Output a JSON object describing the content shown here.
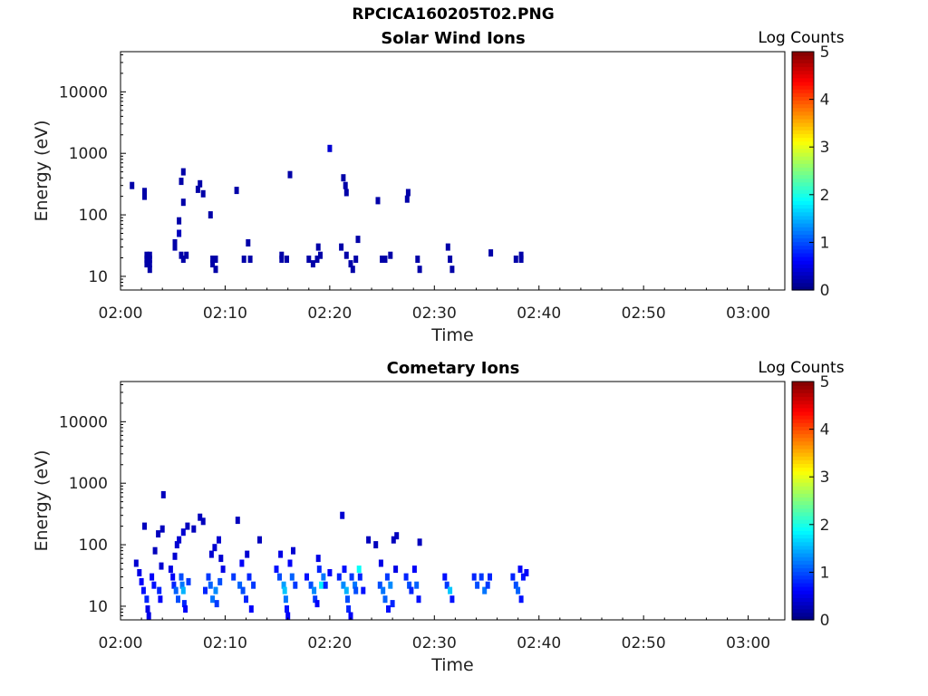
{
  "figure": {
    "title": "RPCICA160205T02.PNG"
  },
  "chart_data": [
    {
      "type": "heatmap",
      "title": "Solar Wind Ions",
      "xlabel": "Time",
      "ylabel": "Energy (eV)",
      "x_ticks": [
        "02:00",
        "02:10",
        "02:20",
        "02:30",
        "02:40",
        "02:50",
        "03:00"
      ],
      "xlim_minutes": [
        0,
        63.5
      ],
      "y_scale": "log",
      "y_ticks": [
        "10",
        "100",
        "1000",
        "10000"
      ],
      "ylim": [
        6,
        45000
      ],
      "colorbar": {
        "label": "Log Counts",
        "ticks": [
          "0",
          "1",
          "2",
          "3",
          "4",
          "5"
        ],
        "range": [
          0,
          5
        ],
        "colormap": "jet"
      },
      "pixels": [
        {
          "t": 1.1,
          "e": 300,
          "v": 0.2
        },
        {
          "t": 2.3,
          "e": 200,
          "v": 0.2
        },
        {
          "t": 2.3,
          "e": 240,
          "v": 0.2
        },
        {
          "t": 2.5,
          "e": 16,
          "v": 0.2
        },
        {
          "t": 2.5,
          "e": 19,
          "v": 0.2
        },
        {
          "t": 2.5,
          "e": 22,
          "v": 0.2
        },
        {
          "t": 2.8,
          "e": 16,
          "v": 0.2
        },
        {
          "t": 2.8,
          "e": 19,
          "v": 0.2
        },
        {
          "t": 2.8,
          "e": 22,
          "v": 0.2
        },
        {
          "t": 2.8,
          "e": 13,
          "v": 0.2
        },
        {
          "t": 5.2,
          "e": 30,
          "v": 0.2
        },
        {
          "t": 5.2,
          "e": 35,
          "v": 0.2
        },
        {
          "t": 5.6,
          "e": 50,
          "v": 0.3
        },
        {
          "t": 5.6,
          "e": 80,
          "v": 0.2
        },
        {
          "t": 5.8,
          "e": 22,
          "v": 0.2
        },
        {
          "t": 5.8,
          "e": 350,
          "v": 0.2
        },
        {
          "t": 6.0,
          "e": 19,
          "v": 0.2
        },
        {
          "t": 6.0,
          "e": 160,
          "v": 0.2
        },
        {
          "t": 6.0,
          "e": 500,
          "v": 0.2
        },
        {
          "t": 6.3,
          "e": 22,
          "v": 0.2
        },
        {
          "t": 7.4,
          "e": 260,
          "v": 0.2
        },
        {
          "t": 7.6,
          "e": 320,
          "v": 0.2
        },
        {
          "t": 7.9,
          "e": 220,
          "v": 0.2
        },
        {
          "t": 8.6,
          "e": 100,
          "v": 0.2
        },
        {
          "t": 8.8,
          "e": 19,
          "v": 0.2
        },
        {
          "t": 8.8,
          "e": 16,
          "v": 0.2
        },
        {
          "t": 9.1,
          "e": 19,
          "v": 0.2
        },
        {
          "t": 9.1,
          "e": 13,
          "v": 0.2
        },
        {
          "t": 11.1,
          "e": 250,
          "v": 0.2
        },
        {
          "t": 11.8,
          "e": 19,
          "v": 0.2
        },
        {
          "t": 12.2,
          "e": 35,
          "v": 0.2
        },
        {
          "t": 12.4,
          "e": 19,
          "v": 0.2
        },
        {
          "t": 15.4,
          "e": 19,
          "v": 0.2
        },
        {
          "t": 15.4,
          "e": 22,
          "v": 0.2
        },
        {
          "t": 15.9,
          "e": 19,
          "v": 0.2
        },
        {
          "t": 16.2,
          "e": 450,
          "v": 0.2
        },
        {
          "t": 18.0,
          "e": 19,
          "v": 0.2
        },
        {
          "t": 18.4,
          "e": 16,
          "v": 0.2
        },
        {
          "t": 18.8,
          "e": 19,
          "v": 0.2
        },
        {
          "t": 18.9,
          "e": 30,
          "v": 0.2
        },
        {
          "t": 19.1,
          "e": 22,
          "v": 0.2
        },
        {
          "t": 20.0,
          "e": 1200,
          "v": 0.4
        },
        {
          "t": 21.1,
          "e": 30,
          "v": 0.2
        },
        {
          "t": 21.3,
          "e": 400,
          "v": 0.2
        },
        {
          "t": 21.5,
          "e": 300,
          "v": 0.2
        },
        {
          "t": 21.6,
          "e": 230,
          "v": 0.2
        },
        {
          "t": 21.6,
          "e": 22,
          "v": 0.2
        },
        {
          "t": 22.0,
          "e": 16,
          "v": 0.2
        },
        {
          "t": 22.2,
          "e": 13,
          "v": 0.2
        },
        {
          "t": 22.7,
          "e": 40,
          "v": 0.2
        },
        {
          "t": 22.5,
          "e": 19,
          "v": 0.2
        },
        {
          "t": 24.6,
          "e": 170,
          "v": 0.2
        },
        {
          "t": 25.0,
          "e": 19,
          "v": 0.2
        },
        {
          "t": 25.3,
          "e": 19,
          "v": 0.2
        },
        {
          "t": 25.8,
          "e": 22,
          "v": 0.2
        },
        {
          "t": 27.5,
          "e": 230,
          "v": 0.2
        },
        {
          "t": 27.4,
          "e": 180,
          "v": 0.2
        },
        {
          "t": 28.4,
          "e": 19,
          "v": 0.2
        },
        {
          "t": 28.6,
          "e": 13,
          "v": 0.2
        },
        {
          "t": 31.3,
          "e": 30,
          "v": 0.2
        },
        {
          "t": 31.5,
          "e": 19,
          "v": 0.2
        },
        {
          "t": 31.7,
          "e": 13,
          "v": 0.2
        },
        {
          "t": 35.4,
          "e": 24,
          "v": 0.2
        },
        {
          "t": 37.8,
          "e": 19,
          "v": 0.2
        },
        {
          "t": 38.3,
          "e": 19,
          "v": 0.2
        },
        {
          "t": 38.3,
          "e": 22,
          "v": 0.2
        }
      ]
    },
    {
      "type": "heatmap",
      "title": "Cometary Ions",
      "xlabel": "Time",
      "ylabel": "Energy (eV)",
      "x_ticks": [
        "02:00",
        "02:10",
        "02:20",
        "02:30",
        "02:40",
        "02:50",
        "03:00"
      ],
      "xlim_minutes": [
        0,
        63.5
      ],
      "y_scale": "log",
      "y_ticks": [
        "10",
        "100",
        "1000",
        "10000"
      ],
      "ylim": [
        6,
        45000
      ],
      "colorbar": {
        "label": "Log Counts",
        "ticks": [
          "0",
          "1",
          "2",
          "3",
          "4",
          "5"
        ],
        "range": [
          0,
          5
        ],
        "colormap": "jet"
      },
      "pixels": [
        {
          "t": 1.5,
          "e": 50,
          "v": 0.4
        },
        {
          "t": 1.8,
          "e": 35,
          "v": 0.5
        },
        {
          "t": 2.0,
          "e": 25,
          "v": 0.6
        },
        {
          "t": 2.2,
          "e": 18,
          "v": 0.7
        },
        {
          "t": 2.3,
          "e": 200,
          "v": 0.3
        },
        {
          "t": 2.5,
          "e": 13,
          "v": 0.8
        },
        {
          "t": 2.6,
          "e": 9,
          "v": 0.5
        },
        {
          "t": 2.7,
          "e": 7,
          "v": 0.5
        },
        {
          "t": 3.0,
          "e": 30,
          "v": 0.6
        },
        {
          "t": 3.2,
          "e": 22,
          "v": 0.7
        },
        {
          "t": 3.3,
          "e": 80,
          "v": 0.3
        },
        {
          "t": 3.6,
          "e": 150,
          "v": 0.3
        },
        {
          "t": 3.7,
          "e": 18,
          "v": 0.8
        },
        {
          "t": 3.8,
          "e": 13,
          "v": 0.6
        },
        {
          "t": 3.9,
          "e": 45,
          "v": 0.4
        },
        {
          "t": 4.0,
          "e": 180,
          "v": 0.3
        },
        {
          "t": 4.1,
          "e": 650,
          "v": 0.3
        },
        {
          "t": 4.8,
          "e": 40,
          "v": 0.5
        },
        {
          "t": 5.0,
          "e": 30,
          "v": 0.6
        },
        {
          "t": 5.1,
          "e": 22,
          "v": 0.8
        },
        {
          "t": 5.2,
          "e": 65,
          "v": 0.4
        },
        {
          "t": 5.3,
          "e": 18,
          "v": 1.1
        },
        {
          "t": 5.4,
          "e": 100,
          "v": 0.4
        },
        {
          "t": 5.5,
          "e": 13,
          "v": 1.0
        },
        {
          "t": 5.6,
          "e": 120,
          "v": 0.4
        },
        {
          "t": 5.8,
          "e": 30,
          "v": 1.0
        },
        {
          "t": 5.9,
          "e": 22,
          "v": 1.2
        },
        {
          "t": 6.0,
          "e": 18,
          "v": 1.5
        },
        {
          "t": 6.0,
          "e": 160,
          "v": 0.4
        },
        {
          "t": 6.1,
          "e": 11,
          "v": 0.8
        },
        {
          "t": 6.2,
          "e": 9,
          "v": 0.6
        },
        {
          "t": 6.4,
          "e": 200,
          "v": 0.3
        },
        {
          "t": 6.5,
          "e": 25,
          "v": 0.9
        },
        {
          "t": 7.0,
          "e": 180,
          "v": 0.3
        },
        {
          "t": 7.6,
          "e": 280,
          "v": 0.3
        },
        {
          "t": 7.9,
          "e": 240,
          "v": 0.3
        },
        {
          "t": 8.1,
          "e": 18,
          "v": 0.8
        },
        {
          "t": 8.4,
          "e": 30,
          "v": 0.9
        },
        {
          "t": 8.6,
          "e": 22,
          "v": 1.1
        },
        {
          "t": 8.7,
          "e": 70,
          "v": 0.4
        },
        {
          "t": 8.8,
          "e": 13,
          "v": 1.2
        },
        {
          "t": 9.0,
          "e": 90,
          "v": 0.4
        },
        {
          "t": 9.1,
          "e": 18,
          "v": 1.3
        },
        {
          "t": 9.2,
          "e": 11,
          "v": 0.9
        },
        {
          "t": 9.4,
          "e": 120,
          "v": 0.4
        },
        {
          "t": 9.5,
          "e": 25,
          "v": 1.0
        },
        {
          "t": 9.6,
          "e": 60,
          "v": 0.4
        },
        {
          "t": 9.8,
          "e": 40,
          "v": 0.5
        },
        {
          "t": 10.8,
          "e": 30,
          "v": 0.9
        },
        {
          "t": 11.2,
          "e": 250,
          "v": 0.3
        },
        {
          "t": 11.4,
          "e": 22,
          "v": 1.1
        },
        {
          "t": 11.6,
          "e": 50,
          "v": 0.6
        },
        {
          "t": 11.7,
          "e": 18,
          "v": 1.0
        },
        {
          "t": 12.0,
          "e": 13,
          "v": 0.8
        },
        {
          "t": 12.1,
          "e": 70,
          "v": 0.4
        },
        {
          "t": 12.3,
          "e": 30,
          "v": 0.8
        },
        {
          "t": 12.5,
          "e": 9,
          "v": 0.6
        },
        {
          "t": 12.7,
          "e": 22,
          "v": 0.9
        },
        {
          "t": 13.3,
          "e": 120,
          "v": 0.3
        },
        {
          "t": 14.9,
          "e": 40,
          "v": 0.7
        },
        {
          "t": 15.2,
          "e": 30,
          "v": 1.0
        },
        {
          "t": 15.3,
          "e": 70,
          "v": 0.5
        },
        {
          "t": 15.6,
          "e": 22,
          "v": 1.4
        },
        {
          "t": 15.7,
          "e": 18,
          "v": 1.6
        },
        {
          "t": 15.8,
          "e": 13,
          "v": 1.2
        },
        {
          "t": 15.9,
          "e": 9,
          "v": 0.7
        },
        {
          "t": 16.0,
          "e": 7,
          "v": 0.6
        },
        {
          "t": 16.2,
          "e": 50,
          "v": 0.6
        },
        {
          "t": 16.4,
          "e": 30,
          "v": 1.1
        },
        {
          "t": 16.5,
          "e": 80,
          "v": 0.4
        },
        {
          "t": 16.7,
          "e": 22,
          "v": 0.9
        },
        {
          "t": 17.8,
          "e": 30,
          "v": 0.7
        },
        {
          "t": 18.2,
          "e": 22,
          "v": 1.0
        },
        {
          "t": 18.5,
          "e": 18,
          "v": 1.3
        },
        {
          "t": 18.6,
          "e": 13,
          "v": 0.9
        },
        {
          "t": 18.8,
          "e": 11,
          "v": 0.6
        },
        {
          "t": 18.9,
          "e": 60,
          "v": 0.5
        },
        {
          "t": 19.0,
          "e": 40,
          "v": 0.8
        },
        {
          "t": 19.2,
          "e": 22,
          "v": 1.8
        },
        {
          "t": 19.4,
          "e": 30,
          "v": 1.2
        },
        {
          "t": 19.6,
          "e": 22,
          "v": 0.8
        },
        {
          "t": 20.0,
          "e": 35,
          "v": 0.6
        },
        {
          "t": 20.9,
          "e": 30,
          "v": 0.8
        },
        {
          "t": 21.2,
          "e": 300,
          "v": 0.4
        },
        {
          "t": 21.3,
          "e": 22,
          "v": 1.3
        },
        {
          "t": 21.4,
          "e": 40,
          "v": 0.7
        },
        {
          "t": 21.6,
          "e": 18,
          "v": 1.5
        },
        {
          "t": 21.7,
          "e": 13,
          "v": 1.0
        },
        {
          "t": 21.8,
          "e": 9,
          "v": 0.8
        },
        {
          "t": 22.0,
          "e": 7,
          "v": 0.6
        },
        {
          "t": 22.1,
          "e": 30,
          "v": 0.9
        },
        {
          "t": 22.4,
          "e": 22,
          "v": 1.2
        },
        {
          "t": 22.5,
          "e": 18,
          "v": 1.0
        },
        {
          "t": 22.8,
          "e": 40,
          "v": 1.9
        },
        {
          "t": 22.9,
          "e": 30,
          "v": 0.8
        },
        {
          "t": 23.2,
          "e": 18,
          "v": 0.7
        },
        {
          "t": 23.7,
          "e": 120,
          "v": 0.3
        },
        {
          "t": 24.4,
          "e": 100,
          "v": 0.3
        },
        {
          "t": 24.8,
          "e": 22,
          "v": 1.0
        },
        {
          "t": 24.9,
          "e": 50,
          "v": 0.5
        },
        {
          "t": 25.1,
          "e": 18,
          "v": 1.2
        },
        {
          "t": 25.3,
          "e": 13,
          "v": 1.1
        },
        {
          "t": 25.5,
          "e": 30,
          "v": 0.9
        },
        {
          "t": 25.6,
          "e": 9,
          "v": 0.7
        },
        {
          "t": 25.8,
          "e": 22,
          "v": 1.3
        },
        {
          "t": 26.0,
          "e": 11,
          "v": 0.8
        },
        {
          "t": 26.1,
          "e": 120,
          "v": 0.3
        },
        {
          "t": 26.3,
          "e": 40,
          "v": 0.5
        },
        {
          "t": 26.4,
          "e": 140,
          "v": 0.3
        },
        {
          "t": 27.3,
          "e": 30,
          "v": 0.8
        },
        {
          "t": 27.6,
          "e": 22,
          "v": 1.0
        },
        {
          "t": 27.8,
          "e": 18,
          "v": 0.8
        },
        {
          "t": 28.1,
          "e": 40,
          "v": 0.6
        },
        {
          "t": 28.3,
          "e": 22,
          "v": 1.1
        },
        {
          "t": 28.5,
          "e": 13,
          "v": 0.7
        },
        {
          "t": 28.6,
          "e": 110,
          "v": 0.3
        },
        {
          "t": 31.0,
          "e": 30,
          "v": 0.7
        },
        {
          "t": 31.2,
          "e": 22,
          "v": 0.9
        },
        {
          "t": 31.5,
          "e": 18,
          "v": 1.6
        },
        {
          "t": 31.7,
          "e": 13,
          "v": 0.7
        },
        {
          "t": 33.8,
          "e": 30,
          "v": 0.8
        },
        {
          "t": 34.1,
          "e": 22,
          "v": 1.0
        },
        {
          "t": 34.5,
          "e": 30,
          "v": 0.9
        },
        {
          "t": 34.8,
          "e": 18,
          "v": 1.2
        },
        {
          "t": 35.1,
          "e": 22,
          "v": 0.9
        },
        {
          "t": 35.3,
          "e": 30,
          "v": 0.8
        },
        {
          "t": 37.5,
          "e": 30,
          "v": 0.8
        },
        {
          "t": 37.8,
          "e": 22,
          "v": 1.0
        },
        {
          "t": 38.0,
          "e": 18,
          "v": 1.1
        },
        {
          "t": 38.2,
          "e": 40,
          "v": 0.6
        },
        {
          "t": 38.3,
          "e": 13,
          "v": 0.7
        },
        {
          "t": 38.5,
          "e": 30,
          "v": 0.7
        },
        {
          "t": 38.8,
          "e": 35,
          "v": 0.6
        }
      ]
    }
  ]
}
